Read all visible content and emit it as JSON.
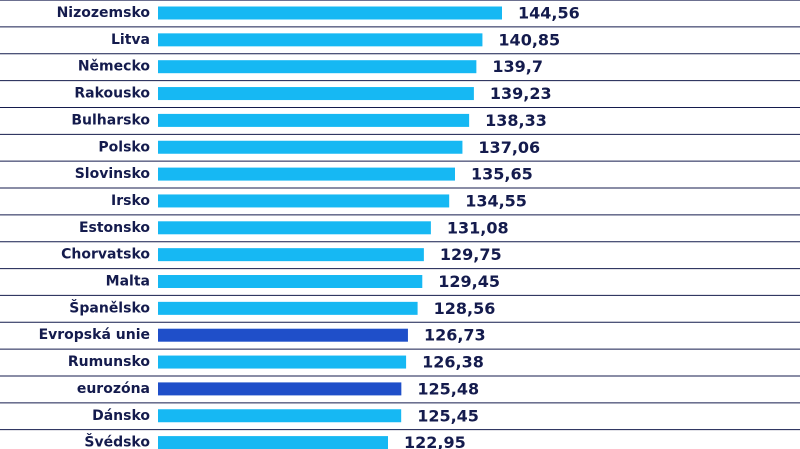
{
  "chart_data": {
    "type": "hbar",
    "categories": [
      "Nizozemsko",
      "Litva",
      "Německo",
      "Rakousko",
      "Bulharsko",
      "Polsko",
      "Slovinsko",
      "Irsko",
      "Estonsko",
      "Chorvatsko",
      "Malta",
      "Španělsko",
      "Evropská unie",
      "Rumunsko",
      "eurozóna",
      "Dánsko",
      "Švédsko"
    ],
    "values": [
      144.56,
      140.85,
      139.7,
      139.23,
      138.33,
      137.06,
      135.65,
      134.55,
      131.08,
      129.75,
      129.45,
      128.56,
      126.73,
      126.38,
      125.48,
      125.45,
      122.95
    ],
    "value_labels": [
      "144,56",
      "140,85",
      "139,7",
      "139,23",
      "138,33",
      "137,06",
      "135,65",
      "134,55",
      "131,08",
      "129,75",
      "129,45",
      "128,56",
      "126,73",
      "126,38",
      "125,48",
      "125,45",
      "122,95"
    ],
    "colors": [
      "#16b8f3",
      "#16b8f3",
      "#16b8f3",
      "#16b8f3",
      "#16b8f3",
      "#16b8f3",
      "#16b8f3",
      "#16b8f3",
      "#16b8f3",
      "#16b8f3",
      "#16b8f3",
      "#16b8f3",
      "#1f4fc9",
      "#16b8f3",
      "#1f4fc9",
      "#16b8f3",
      "#16b8f3"
    ]
  }
}
